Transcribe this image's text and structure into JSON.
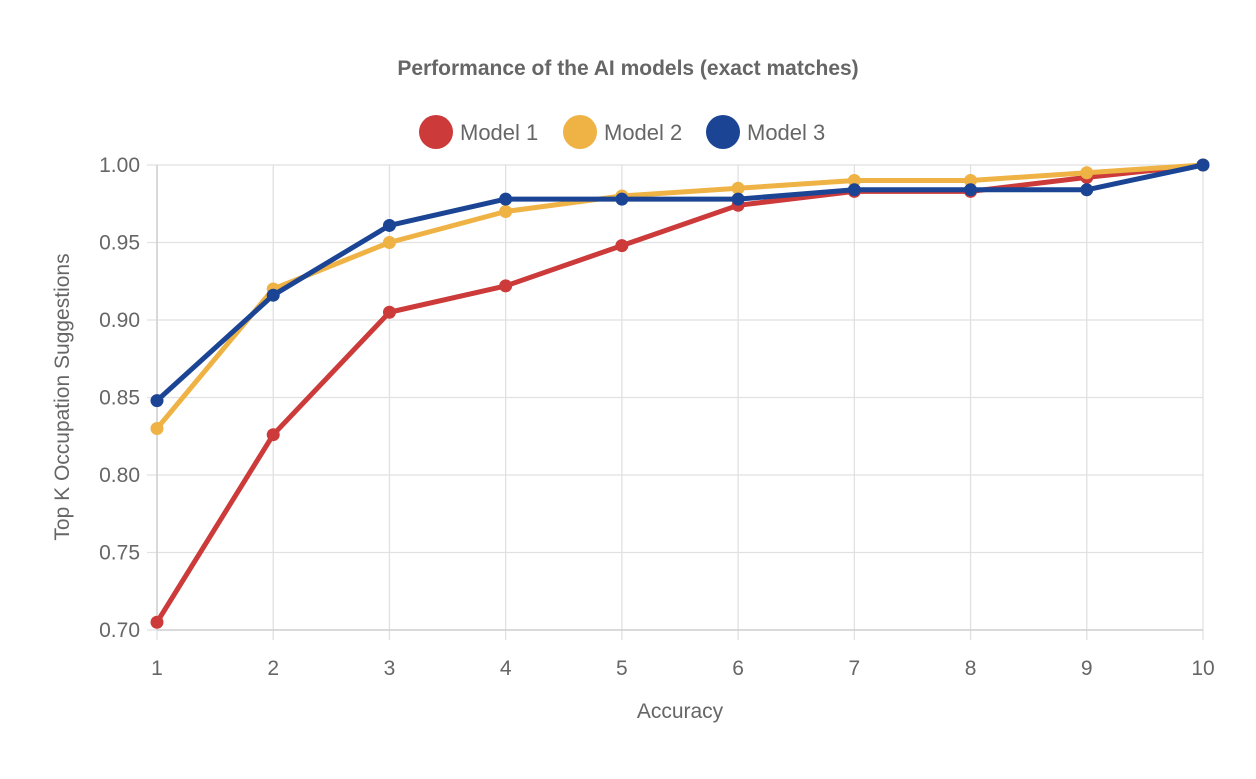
{
  "chart_data": {
    "type": "line",
    "title": "Performance of the AI models (exact matches)",
    "xlabel": "Accuracy",
    "ylabel": "Top K Occupation Suggestions",
    "x": [
      1,
      2,
      3,
      4,
      5,
      6,
      7,
      8,
      9,
      10
    ],
    "x_tick_labels": [
      "1",
      "2",
      "3",
      "4",
      "5",
      "6",
      "7",
      "8",
      "9",
      "10"
    ],
    "ylim": [
      0.7,
      1.0
    ],
    "y_ticks": [
      0.7,
      0.75,
      0.8,
      0.85,
      0.9,
      0.95,
      1.0
    ],
    "y_tick_labels": [
      "0.70",
      "0.75",
      "0.80",
      "0.85",
      "0.90",
      "0.95",
      "1.00"
    ],
    "grid": true,
    "legend_position": "top-center",
    "series": [
      {
        "name": "Model 1",
        "color": "#cc3a3a",
        "values": [
          0.705,
          0.826,
          0.905,
          0.922,
          0.948,
          0.974,
          0.983,
          0.983,
          0.992,
          1.0
        ]
      },
      {
        "name": "Model 2",
        "color": "#efb244",
        "values": [
          0.83,
          0.92,
          0.95,
          0.97,
          0.98,
          0.985,
          0.99,
          0.99,
          0.995,
          1.0
        ]
      },
      {
        "name": "Model 3",
        "color": "#1b4594",
        "values": [
          0.848,
          0.916,
          0.961,
          0.978,
          0.978,
          0.978,
          0.984,
          0.984,
          0.984,
          1.0
        ]
      }
    ]
  }
}
